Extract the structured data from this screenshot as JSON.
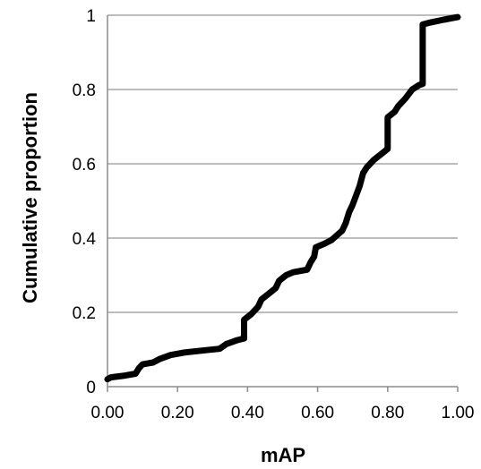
{
  "chart_data": {
    "type": "line",
    "title": "",
    "xlabel": "mAP",
    "ylabel": "Cumulative proportion",
    "xlim": [
      0,
      1
    ],
    "ylim": [
      0,
      1
    ],
    "x_ticks": [
      "0.00",
      "0.20",
      "0.40",
      "0.60",
      "0.80",
      "1.00"
    ],
    "y_ticks": [
      "0",
      "0.2",
      "0.4",
      "0.6",
      "0.8",
      "1"
    ],
    "grid": true,
    "legend": "none",
    "series": [
      {
        "color": "#000000",
        "points": [
          [
            0.0,
            0.02
          ],
          [
            0.01,
            0.025
          ],
          [
            0.05,
            0.03
          ],
          [
            0.08,
            0.035
          ],
          [
            0.09,
            0.05
          ],
          [
            0.1,
            0.06
          ],
          [
            0.13,
            0.065
          ],
          [
            0.15,
            0.075
          ],
          [
            0.18,
            0.085
          ],
          [
            0.22,
            0.092
          ],
          [
            0.27,
            0.097
          ],
          [
            0.32,
            0.102
          ],
          [
            0.34,
            0.115
          ],
          [
            0.37,
            0.125
          ],
          [
            0.39,
            0.13
          ],
          [
            0.39,
            0.18
          ],
          [
            0.41,
            0.195
          ],
          [
            0.43,
            0.215
          ],
          [
            0.44,
            0.235
          ],
          [
            0.46,
            0.25
          ],
          [
            0.48,
            0.265
          ],
          [
            0.49,
            0.285
          ],
          [
            0.51,
            0.3
          ],
          [
            0.53,
            0.308
          ],
          [
            0.57,
            0.315
          ],
          [
            0.58,
            0.335
          ],
          [
            0.59,
            0.35
          ],
          [
            0.595,
            0.375
          ],
          [
            0.62,
            0.385
          ],
          [
            0.64,
            0.395
          ],
          [
            0.67,
            0.42
          ],
          [
            0.68,
            0.44
          ],
          [
            0.69,
            0.47
          ],
          [
            0.7,
            0.49
          ],
          [
            0.71,
            0.515
          ],
          [
            0.72,
            0.54
          ],
          [
            0.73,
            0.575
          ],
          [
            0.74,
            0.59
          ],
          [
            0.76,
            0.61
          ],
          [
            0.78,
            0.625
          ],
          [
            0.8,
            0.64
          ],
          [
            0.8,
            0.725
          ],
          [
            0.82,
            0.74
          ],
          [
            0.83,
            0.755
          ],
          [
            0.85,
            0.775
          ],
          [
            0.87,
            0.8
          ],
          [
            0.89,
            0.812
          ],
          [
            0.9,
            0.815
          ],
          [
            0.9,
            0.975
          ],
          [
            0.92,
            0.98
          ],
          [
            0.96,
            0.988
          ],
          [
            1.0,
            0.995
          ]
        ]
      }
    ]
  }
}
